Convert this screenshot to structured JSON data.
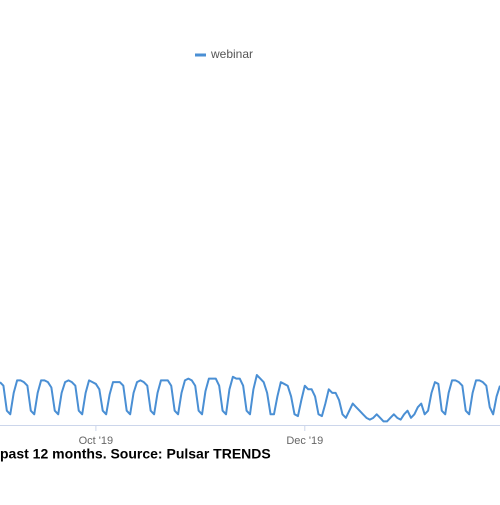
{
  "chart_data": {
    "type": "line",
    "caption": "past 12 months. Source: Pulsar TRENDS",
    "x": [
      0,
      1,
      2,
      3,
      4,
      5,
      6,
      7,
      8,
      9,
      10,
      11,
      12,
      13,
      14,
      15,
      16,
      17,
      18,
      19,
      20,
      21,
      22,
      23,
      24,
      25,
      26,
      27,
      28,
      29,
      30,
      31,
      32,
      33,
      34,
      35,
      36,
      37,
      38,
      39,
      40,
      41,
      42,
      43,
      44,
      45,
      46,
      47,
      48,
      49,
      50,
      51,
      52,
      53,
      54,
      55,
      56,
      57,
      58,
      59,
      60,
      61,
      62,
      63,
      64,
      65,
      66,
      67,
      68,
      69,
      70,
      71,
      72,
      73,
      74,
      75,
      76,
      77,
      78,
      79,
      80,
      81,
      82,
      83,
      84,
      85,
      86,
      87,
      88,
      89,
      90,
      91,
      92,
      93,
      94,
      95,
      96,
      97,
      98,
      99,
      100,
      101,
      102,
      103,
      104,
      105,
      106,
      107,
      108,
      109,
      110,
      111,
      112,
      113,
      114,
      115,
      116,
      117,
      118,
      119,
      120,
      121,
      122,
      123,
      124,
      125,
      126,
      127,
      128,
      129,
      130,
      131,
      132,
      133,
      134,
      135,
      136,
      137,
      138,
      139,
      140,
      141,
      142,
      143,
      144,
      145,
      146
    ],
    "series": [
      {
        "name": "webinar",
        "color": "#4a8fd4",
        "values": [
          12,
          11,
          4,
          3,
          9,
          12.5,
          12.5,
          12,
          11,
          4,
          3,
          9,
          12.5,
          12.5,
          12,
          10.5,
          4,
          3,
          9,
          12,
          12.5,
          12,
          11,
          4,
          3,
          9,
          12.5,
          12,
          11.5,
          10,
          4,
          3,
          8.5,
          12,
          12,
          12,
          11,
          4,
          3,
          9,
          12,
          12.5,
          12,
          11,
          4,
          3,
          9,
          12.5,
          12.5,
          12.5,
          11,
          4,
          3,
          9,
          12.5,
          13,
          12.5,
          11,
          4,
          3,
          9.5,
          13,
          13,
          13,
          11,
          4,
          3,
          10,
          13.5,
          13,
          13,
          11,
          4,
          3,
          10,
          14,
          13,
          12,
          9,
          3,
          3,
          8,
          12,
          11.5,
          11,
          8,
          3,
          2.5,
          7,
          11,
          10,
          10,
          8,
          3,
          2.5,
          6,
          10,
          9,
          9,
          7,
          3,
          2,
          4,
          6,
          5,
          4,
          3,
          2,
          1.5,
          2,
          3,
          2,
          1,
          1,
          2,
          3,
          2,
          1.5,
          3,
          4,
          2,
          3,
          5,
          6,
          3,
          4,
          9,
          12,
          11.5,
          4,
          3,
          9,
          12.5,
          12.5,
          12,
          11,
          4,
          3,
          9,
          12.5,
          12.5,
          12,
          11,
          5,
          3,
          8,
          11
        ]
      }
    ],
    "xlim": [
      0,
      146
    ],
    "ylim": [
      0,
      100
    ],
    "xticks": [
      {
        "value": 28,
        "label": "Oct '19"
      },
      {
        "value": 89,
        "label": "Dec '19"
      }
    ]
  }
}
